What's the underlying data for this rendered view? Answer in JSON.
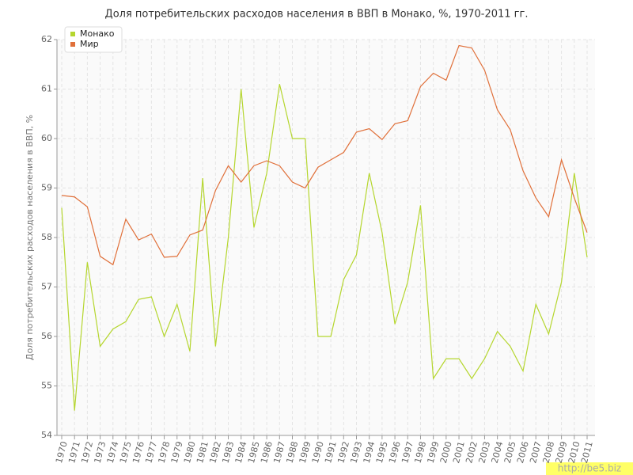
{
  "chart_data": {
    "type": "line",
    "title": "Доля потребительских расходов населения в ВВП в Монако, %, 1970-2011 гг.",
    "y_label": "Доля потребительских расходов населения в ВВП, %",
    "watermark": "http://be5.biz",
    "categories": [
      "1970",
      "1971",
      "1972",
      "1973",
      "1974",
      "1975",
      "1976",
      "1977",
      "1978",
      "1979",
      "1980",
      "1981",
      "1982",
      "1983",
      "1984",
      "1985",
      "1986",
      "1987",
      "1988",
      "1989",
      "1990",
      "1991",
      "1992",
      "1993",
      "1994",
      "1995",
      "1996",
      "1997",
      "1998",
      "1999",
      "2000",
      "2001",
      "2002",
      "2003",
      "2004",
      "2005",
      "2006",
      "2007",
      "2008",
      "2009",
      "2010",
      "2011"
    ],
    "series": [
      {
        "name": "Монако",
        "color": "#b5d62e",
        "values": [
          58.6,
          54.5,
          57.5,
          55.8,
          56.15,
          56.3,
          56.75,
          56.8,
          56.0,
          56.65,
          55.7,
          59.2,
          55.8,
          58.0,
          61.0,
          58.2,
          59.3,
          61.1,
          60.0,
          60.0,
          56.0,
          56.0,
          57.15,
          57.65,
          59.3,
          58.1,
          56.25,
          57.1,
          58.65,
          55.15,
          55.55,
          55.55,
          55.15,
          55.55,
          56.1,
          55.8,
          55.3,
          56.65,
          56.05,
          57.1,
          59.3,
          57.6
        ]
      },
      {
        "name": "Мир",
        "color": "#e0703a",
        "values": [
          58.85,
          58.82,
          58.62,
          57.62,
          57.45,
          58.37,
          57.95,
          58.07,
          57.6,
          57.62,
          58.05,
          58.15,
          58.95,
          59.45,
          59.12,
          59.45,
          59.55,
          59.45,
          59.12,
          59.0,
          59.42,
          59.57,
          59.72,
          60.13,
          60.2,
          59.98,
          60.3,
          60.36,
          61.05,
          61.32,
          61.18,
          61.88,
          61.83,
          61.38,
          60.58,
          60.18,
          59.35,
          58.8,
          58.42,
          59.57,
          58.8,
          58.1
        ]
      }
    ],
    "ylim": [
      54,
      62
    ],
    "yticks": [
      54,
      55,
      56,
      57,
      58,
      59,
      60,
      61,
      62
    ],
    "grid": true
  }
}
